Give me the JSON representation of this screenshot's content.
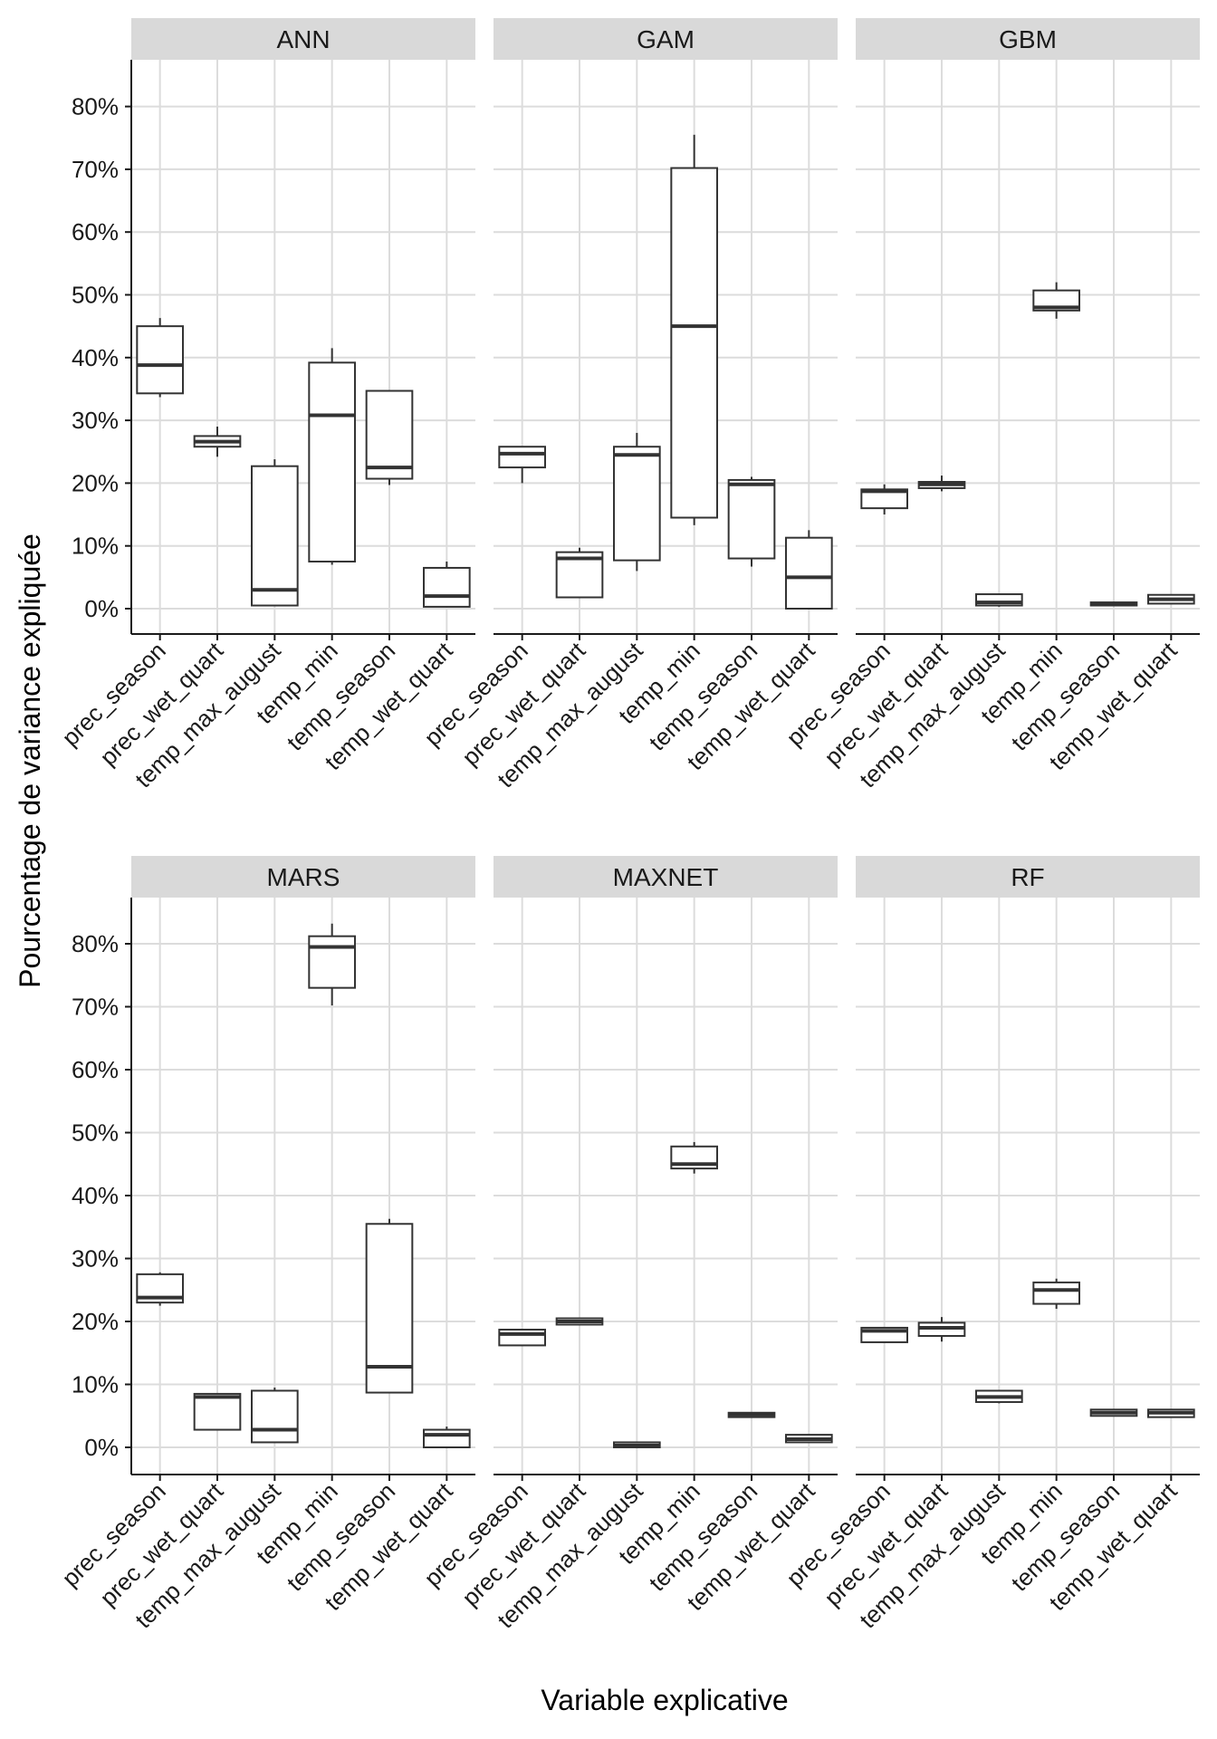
{
  "chart_data": {
    "type": "boxplot",
    "layout": "facet grid, 2 rows x 3 columns",
    "xlabel": "Variable explicative",
    "ylabel": "Pourcentage de variance expliquée",
    "categories": [
      "prec_season",
      "prec_wet_quart",
      "temp_max_august",
      "temp_min",
      "temp_season",
      "temp_wet_quart"
    ],
    "y_ticks": [
      0,
      10,
      20,
      30,
      40,
      50,
      60,
      70,
      80
    ],
    "y_tick_labels": [
      "0%",
      "10%",
      "20%",
      "30%",
      "40%",
      "50%",
      "60%",
      "70%",
      "80%"
    ],
    "ylim": [
      -4,
      87
    ],
    "colors": {
      "strip": "#d9d9d9",
      "grid": "#dcdcdc",
      "box": "#333333",
      "axis": "#1a1a1a"
    },
    "panels": [
      {
        "name": "ANN",
        "boxes": [
          {
            "min": 33.7,
            "q1": 34.3,
            "median": 38.8,
            "q3": 45.0,
            "max": 46.3
          },
          {
            "min": 24.2,
            "q1": 25.8,
            "median": 26.6,
            "q3": 27.5,
            "max": 29.0
          },
          {
            "min": 0.5,
            "q1": 0.5,
            "median": 3.0,
            "q3": 22.7,
            "max": 23.8
          },
          {
            "min": 7.0,
            "q1": 7.5,
            "median": 30.8,
            "q3": 39.2,
            "max": 41.5
          },
          {
            "min": 19.7,
            "q1": 20.7,
            "median": 22.5,
            "q3": 34.7,
            "max": 34.7
          },
          {
            "min": 0.3,
            "q1": 0.3,
            "median": 2.0,
            "q3": 6.5,
            "max": 7.5
          }
        ]
      },
      {
        "name": "GAM",
        "boxes": [
          {
            "min": 20.0,
            "q1": 22.5,
            "median": 24.7,
            "q3": 25.8,
            "max": 25.8
          },
          {
            "min": 1.8,
            "q1": 1.8,
            "median": 8.0,
            "q3": 9.0,
            "max": 9.7
          },
          {
            "min": 6.0,
            "q1": 7.7,
            "median": 24.5,
            "q3": 25.8,
            "max": 28.0
          },
          {
            "min": 13.3,
            "q1": 14.5,
            "median": 45.0,
            "q3": 70.2,
            "max": 75.5
          },
          {
            "min": 6.7,
            "q1": 8.0,
            "median": 19.8,
            "q3": 20.5,
            "max": 21.0
          },
          {
            "min": 0.0,
            "q1": 0.0,
            "median": 5.0,
            "q3": 11.3,
            "max": 12.5
          }
        ]
      },
      {
        "name": "GBM",
        "boxes": [
          {
            "min": 15.0,
            "q1": 16.0,
            "median": 18.7,
            "q3": 19.0,
            "max": 19.8
          },
          {
            "min": 18.7,
            "q1": 19.2,
            "median": 19.8,
            "q3": 20.2,
            "max": 21.2
          },
          {
            "min": 0.3,
            "q1": 0.5,
            "median": 1.0,
            "q3": 2.3,
            "max": 2.3
          },
          {
            "min": 46.2,
            "q1": 47.5,
            "median": 48.0,
            "q3": 50.7,
            "max": 52.0
          },
          {
            "min": 0.5,
            "q1": 0.5,
            "median": 0.7,
            "q3": 1.0,
            "max": 1.0
          },
          {
            "min": 0.8,
            "q1": 0.8,
            "median": 1.5,
            "q3": 2.2,
            "max": 2.2
          }
        ]
      },
      {
        "name": "MARS",
        "boxes": [
          {
            "min": 22.5,
            "q1": 23.0,
            "median": 23.8,
            "q3": 27.5,
            "max": 27.8
          },
          {
            "min": 2.8,
            "q1": 2.8,
            "median": 8.0,
            "q3": 8.5,
            "max": 8.5
          },
          {
            "min": 0.8,
            "q1": 0.8,
            "median": 2.8,
            "q3": 9.0,
            "max": 9.5
          },
          {
            "min": 70.2,
            "q1": 73.0,
            "median": 79.5,
            "q3": 81.2,
            "max": 83.2
          },
          {
            "min": 8.7,
            "q1": 8.7,
            "median": 12.8,
            "q3": 35.5,
            "max": 36.3
          },
          {
            "min": 0.0,
            "q1": 0.0,
            "median": 2.0,
            "q3": 2.8,
            "max": 3.3
          }
        ]
      },
      {
        "name": "MAXNET",
        "boxes": [
          {
            "min": 16.2,
            "q1": 16.2,
            "median": 18.0,
            "q3": 18.7,
            "max": 18.7
          },
          {
            "min": 19.5,
            "q1": 19.5,
            "median": 20.0,
            "q3": 20.5,
            "max": 20.5
          },
          {
            "min": 0.0,
            "q1": 0.0,
            "median": 0.3,
            "q3": 0.8,
            "max": 0.8
          },
          {
            "min": 43.5,
            "q1": 44.3,
            "median": 45.0,
            "q3": 47.8,
            "max": 48.5
          },
          {
            "min": 4.8,
            "q1": 4.8,
            "median": 5.2,
            "q3": 5.5,
            "max": 5.5
          },
          {
            "min": 0.8,
            "q1": 0.8,
            "median": 1.3,
            "q3": 2.0,
            "max": 2.0
          }
        ]
      },
      {
        "name": "RF",
        "boxes": [
          {
            "min": 16.7,
            "q1": 16.7,
            "median": 18.5,
            "q3": 19.0,
            "max": 19.0
          },
          {
            "min": 16.8,
            "q1": 17.7,
            "median": 19.0,
            "q3": 19.8,
            "max": 20.7
          },
          {
            "min": 7.0,
            "q1": 7.2,
            "median": 8.0,
            "q3": 9.0,
            "max": 9.0
          },
          {
            "min": 22.0,
            "q1": 22.8,
            "median": 25.0,
            "q3": 26.2,
            "max": 26.8
          },
          {
            "min": 5.0,
            "q1": 5.0,
            "median": 5.5,
            "q3": 6.0,
            "max": 6.0
          },
          {
            "min": 4.8,
            "q1": 4.8,
            "median": 5.5,
            "q3": 6.0,
            "max": 6.0
          }
        ]
      }
    ]
  }
}
